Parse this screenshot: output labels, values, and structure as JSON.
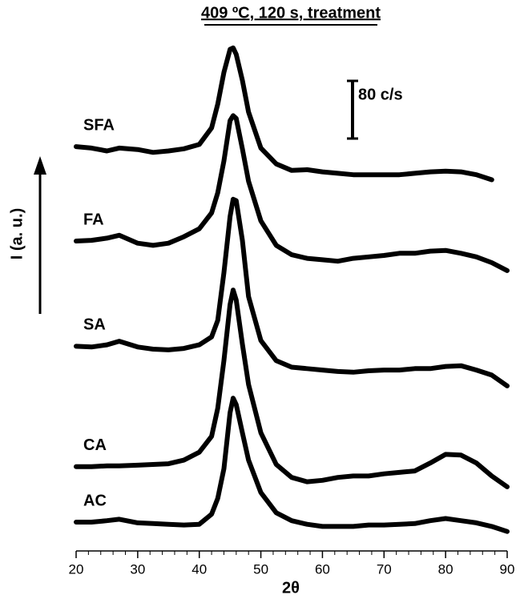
{
  "chart_data": {
    "type": "line",
    "title": "409 ºC, 120 s, treatment",
    "xlabel": "2θ",
    "ylabel": "I (a. u.)",
    "scale_bar": {
      "value": 80,
      "label": "80 c/s"
    },
    "x": [
      20,
      22.5,
      25,
      27,
      30,
      32.5,
      35,
      37.5,
      40,
      42,
      43,
      44,
      45,
      45.5,
      46,
      47,
      48,
      50,
      52.5,
      55,
      57.5,
      60,
      62.5,
      65,
      67.5,
      70,
      72.5,
      75,
      77.5,
      80,
      82.5,
      85,
      87.5,
      90
    ],
    "xlim": [
      20,
      90
    ],
    "xticks": [
      20,
      30,
      40,
      50,
      60,
      70,
      80,
      90
    ],
    "xminorticks": [
      22,
      24,
      26,
      28,
      32,
      34,
      36,
      38,
      42,
      44,
      46,
      48,
      52,
      54,
      56,
      58,
      62,
      64,
      66,
      68,
      72,
      74,
      76,
      78,
      82,
      84,
      86,
      88
    ],
    "ylim": [
      0,
      700
    ],
    "series": [
      {
        "name": "SFA",
        "color": "#000000",
        "values": [
          561,
          559,
          555,
          559,
          557,
          553,
          555,
          558,
          564,
          587,
          620,
          664,
          696,
          698,
          689,
          653,
          609,
          559,
          537,
          528,
          529,
          526,
          524,
          522,
          522,
          522,
          522,
          524,
          526,
          527,
          526,
          522,
          515,
          null
        ]
      },
      {
        "name": "FA",
        "color": "#000000",
        "values": [
          430,
          431,
          434,
          438,
          427,
          424,
          427,
          436,
          447,
          469,
          497,
          541,
          597,
          604,
          600,
          558,
          513,
          458,
          424,
          411,
          406,
          404,
          402,
          406,
          408,
          410,
          413,
          413,
          416,
          417,
          413,
          408,
          400,
          389
        ]
      },
      {
        "name": "SA",
        "color": "#000000",
        "values": [
          284,
          283,
          286,
          291,
          283,
          280,
          279,
          281,
          286,
          297,
          320,
          386,
          464,
          488,
          486,
          431,
          353,
          292,
          264,
          255,
          253,
          251,
          249,
          248,
          250,
          251,
          251,
          253,
          253,
          256,
          257,
          251,
          244,
          229
        ]
      },
      {
        "name": "CA",
        "color": "#000000",
        "values": [
          117,
          117,
          118,
          118,
          119,
          120,
          121,
          126,
          137,
          159,
          198,
          264,
          342,
          362,
          348,
          287,
          231,
          164,
          120,
          102,
          96,
          98,
          102,
          104,
          104,
          107,
          109,
          111,
          122,
          134,
          133,
          122,
          104,
          89
        ]
      },
      {
        "name": "AC",
        "color": "#000000",
        "values": [
          40,
          40,
          42,
          44,
          39,
          38,
          37,
          36,
          37,
          51,
          73,
          114,
          192,
          212,
          203,
          164,
          126,
          81,
          53,
          42,
          37,
          34,
          34,
          34,
          36,
          36,
          37,
          38,
          42,
          45,
          42,
          39,
          34,
          27
        ]
      }
    ]
  }
}
